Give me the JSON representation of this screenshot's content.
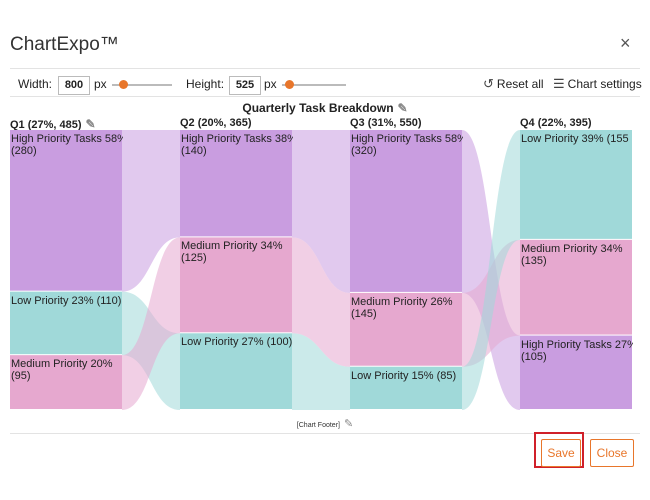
{
  "dialog": {
    "title": "ChartExpo™",
    "close_glyph": "×"
  },
  "toolbar": {
    "width_label": "Width:",
    "width_value": "800",
    "width_unit": "px",
    "height_label": "Height:",
    "height_value": "525",
    "height_unit": "px",
    "reset_label": "Reset all",
    "settings_label": "Chart settings"
  },
  "chart_data": {
    "type": "sankey",
    "title": "Quarterly Task Breakdown",
    "footer": "[Chart Footer]",
    "quarters": [
      {
        "header": "Q1 (27%, 485)",
        "segments": [
          {
            "name": "High Priority Tasks",
            "label": "High Priority Tasks 58%",
            "value_label": "(280)",
            "value": 280,
            "color": "#c99de0"
          },
          {
            "name": "Low Priority",
            "label": "Low Priority 23% (110)",
            "value_label": "",
            "value": 110,
            "color": "#a0d9d9"
          },
          {
            "name": "Medium Priority",
            "label": "Medium Priority 20%",
            "value_label": "(95)",
            "value": 95,
            "color": "#e6a8cf"
          }
        ]
      },
      {
        "header": "Q2 (20%, 365)",
        "segments": [
          {
            "name": "High Priority Tasks",
            "label": "High Priority Tasks 38%",
            "value_label": "(140)",
            "value": 140,
            "color": "#c99de0"
          },
          {
            "name": "Medium Priority",
            "label": "Medium Priority 34%",
            "value_label": "(125)",
            "value": 125,
            "color": "#e6a8cf"
          },
          {
            "name": "Low Priority",
            "label": "Low Priority 27% (100)",
            "value_label": "",
            "value": 100,
            "color": "#a0d9d9"
          }
        ]
      },
      {
        "header": "Q3 (31%, 550)",
        "segments": [
          {
            "name": "High Priority Tasks",
            "label": "High Priority Tasks 58%",
            "value_label": "(320)",
            "value": 320,
            "color": "#c99de0"
          },
          {
            "name": "Medium Priority",
            "label": "Medium Priority 26%",
            "value_label": "(145)",
            "value": 145,
            "color": "#e6a8cf"
          },
          {
            "name": "Low Priority",
            "label": "Low Priority 15% (85)",
            "value_label": "",
            "value": 85,
            "color": "#a0d9d9"
          }
        ]
      },
      {
        "header": "Q4 (22%, 395)",
        "segments": [
          {
            "name": "Low Priority",
            "label": "Low Priority 39% (155",
            "value_label": "",
            "value": 155,
            "color": "#a0d9d9"
          },
          {
            "name": "Medium Priority",
            "label": "Medium Priority 34%",
            "value_label": "(135)",
            "value": 135,
            "color": "#e6a8cf"
          },
          {
            "name": "High Priority Tasks",
            "label": "High Priority Tasks 27%",
            "value_label": "(105)",
            "value": 105,
            "color": "#c99de0"
          }
        ]
      }
    ]
  },
  "buttons": {
    "save_label": "Save",
    "close_label": "Close"
  }
}
